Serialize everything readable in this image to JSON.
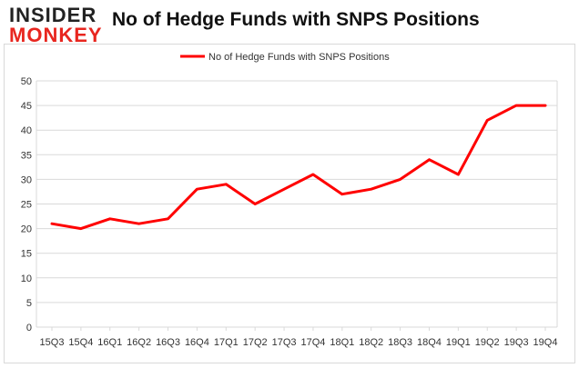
{
  "header": {
    "logo_top": "INSIDER",
    "logo_bottom": "MONKEY",
    "title": "No of Hedge Funds with SNPS Positions"
  },
  "colors": {
    "series": "#ff0000",
    "grid": "#d9d9d9",
    "logo_red": "#e8261f"
  },
  "chart_data": {
    "type": "line",
    "title": "No of Hedge Funds with SNPS Positions",
    "xlabel": "",
    "ylabel": "",
    "categories": [
      "15Q3",
      "15Q4",
      "16Q1",
      "16Q2",
      "16Q3",
      "16Q4",
      "17Q1",
      "17Q2",
      "17Q3",
      "17Q4",
      "18Q1",
      "18Q2",
      "18Q3",
      "18Q4",
      "19Q1",
      "19Q2",
      "19Q3",
      "19Q4"
    ],
    "series": [
      {
        "name": "No of Hedge Funds with SNPS Positions",
        "values": [
          21,
          20,
          22,
          21,
          22,
          28,
          29,
          25,
          28,
          31,
          27,
          28,
          30,
          34,
          31,
          42,
          45,
          45
        ]
      }
    ],
    "ylim": [
      0,
      50
    ],
    "yticks": [
      0,
      5,
      10,
      15,
      20,
      25,
      30,
      35,
      40,
      45,
      50
    ],
    "grid": true,
    "legend": "top-center"
  }
}
